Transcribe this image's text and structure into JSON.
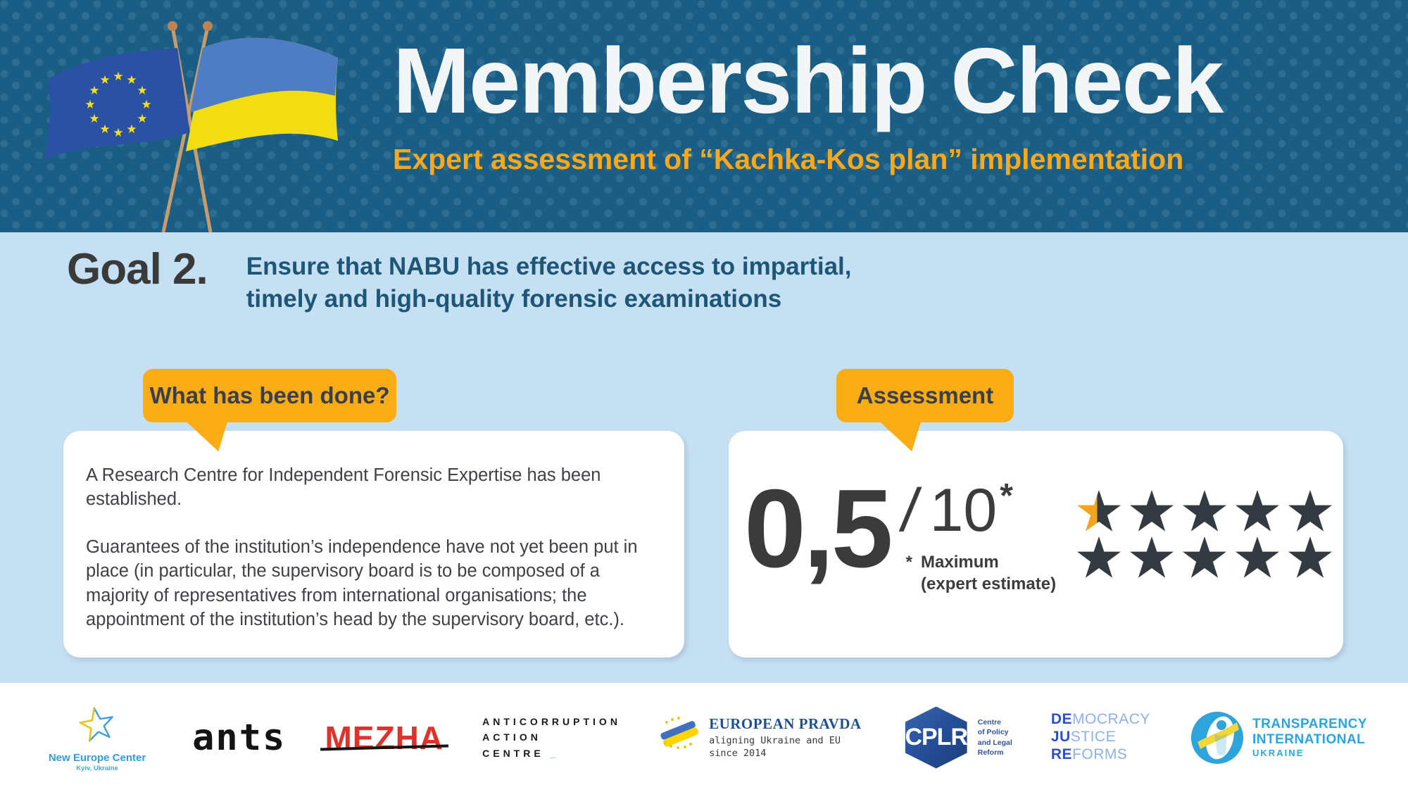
{
  "header": {
    "title": "Membership Check",
    "subtitle": "Expert assessment of “Kachka-Kos plan” implementation"
  },
  "goal": {
    "label": "Goal 2.",
    "line1": "Ensure that NABU has effective access to impartial,",
    "line2": "timely and high-quality forensic examinations"
  },
  "done": {
    "tag": "What has been done?",
    "paragraph1": "A Research Centre for Independent Forensic Expertise has been established.",
    "paragraph2": "Guarantees of the institution’s independence have not yet been put in place (in particular, the supervisory board is to be composed of a majority of representatives from international organisations; the appointment of the institution’s head by the supervisory board, etc.)."
  },
  "assessment": {
    "tag": "Assessment",
    "score": "0,5",
    "divider": "/",
    "max": "10",
    "max_asterisk": "*",
    "note_asterisk": "*",
    "note_line1": "Maximum",
    "note_line2": "(expert estimate)",
    "stars_total": 10,
    "stars_filled": 0.5
  },
  "footer": {
    "nec": {
      "name": "New Europe Center",
      "city": "Kyiv, Ukraine"
    },
    "ants": {
      "text": "ants"
    },
    "mezha": {
      "text": "MEZHA"
    },
    "antac": {
      "line1": "ANTICORRUPTION",
      "line2": "ACTION",
      "line3": "CENTRE",
      "cursor": "_"
    },
    "ep": {
      "title": "EUROPEAN PRAVDA",
      "sub1": "aligning Ukraine and EU",
      "sub2": "since 2014"
    },
    "cplr": {
      "abbr": "CPLR",
      "desc_lines": [
        "Centre",
        "of Policy",
        "and Legal",
        "Reform"
      ]
    },
    "dejure": {
      "rows": [
        [
          "DE",
          "MOCRACY"
        ],
        [
          "JU",
          "STICE"
        ],
        [
          "RE",
          "FORMS"
        ]
      ]
    },
    "ti": {
      "line1": "TRANSPARENCY",
      "line2": "INTERNATIONAL",
      "line3": "UKRAINE"
    }
  },
  "colors": {
    "header_bg": "#1A5E86",
    "header_dot": "#2C6D92",
    "title": "#F3F6F7",
    "accent_orange": "#F8A81A",
    "body_bg": "#C5DFF3",
    "goal_label": "#3A3A3A",
    "goal_text": "#1E5677",
    "tag_bg": "#F9AC14",
    "tag_text": "#3A3F48",
    "card_bg": "#FFFFFF",
    "card_text": "#3E4145",
    "score_text": "#3B3B3B",
    "star_filled": "#F6A41D",
    "star_empty": "#343A41",
    "footer_bg": "#FFFFFF"
  }
}
